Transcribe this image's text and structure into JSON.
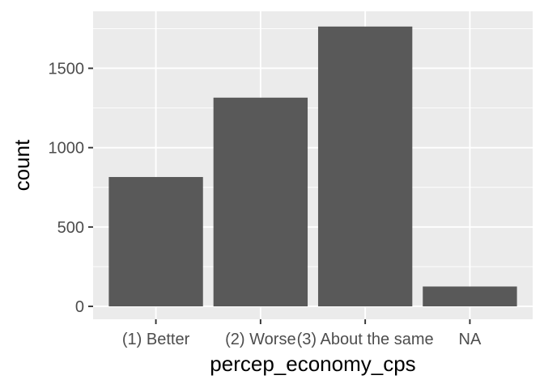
{
  "chart_data": {
    "type": "bar",
    "categories": [
      "(1) Better",
      "(2) Worse",
      "(3) About the same",
      "NA"
    ],
    "values": [
      815,
      1315,
      1763,
      125
    ],
    "xlabel": "percep_economy_cps",
    "ylabel": "count",
    "ylim": [
      0,
      1850
    ],
    "yticks": [
      0,
      500,
      1000,
      1500
    ],
    "grid": true,
    "legend": "none",
    "colors": {
      "panel": "#ebebeb",
      "grid": "#ffffff",
      "bar": "#595959",
      "tick": "#333333",
      "tick_label": "#4d4d4d"
    }
  }
}
